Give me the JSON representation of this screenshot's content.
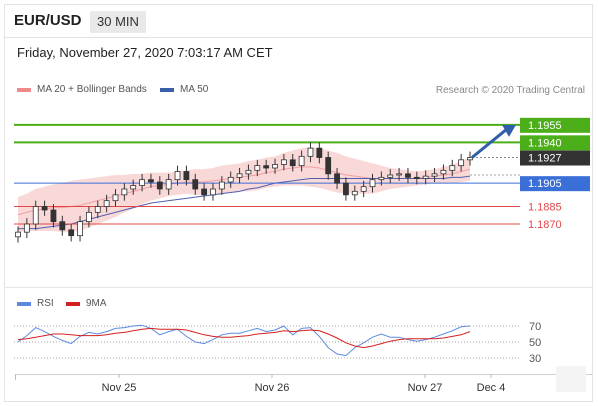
{
  "header": {
    "pair": "EUR/USD",
    "timeframe": "30 MIN"
  },
  "datetime": "Friday, November 27, 2020 7:03:17 AM CET",
  "legend": {
    "bb_label": "MA 20 + Bollinger Bands",
    "ma_label": "MA 50",
    "credit": "Research © 2020 Trading Central"
  },
  "rsi_legend": {
    "rsi": "RSI",
    "ma": "9MA"
  },
  "colors": {
    "green": "#4caf1a",
    "red": "#e04848",
    "blue": "#3a6fd8",
    "dark": "#333333",
    "bb": "#f4b8b8",
    "ma50": "#5060b0"
  },
  "chart_data": {
    "type": "line",
    "subtype": "candlestick",
    "ylim": [
      1.1822,
      1.1978
    ],
    "x_labels": [
      "Nov 25",
      "Nov 26",
      "Nov 27",
      "Dec 4"
    ],
    "levels": [
      {
        "value": 1.1955,
        "label": "1.1955",
        "style": "green"
      },
      {
        "value": 1.194,
        "label": "1.1940",
        "style": "green"
      },
      {
        "value": 1.1927,
        "label": "1.1927",
        "style": "dark"
      },
      {
        "value": 1.1905,
        "label": "1.1905",
        "style": "blue"
      },
      {
        "value": 1.1885,
        "label": "1.1885",
        "style": "red"
      },
      {
        "value": 1.187,
        "label": "1.1870",
        "style": "red"
      }
    ],
    "price": [
      1.1863,
      1.187,
      1.1885,
      1.1882,
      1.1872,
      1.1865,
      1.186,
      1.1872,
      1.188,
      1.1885,
      1.189,
      1.1895,
      1.19,
      1.1903,
      1.1908,
      1.1906,
      1.19,
      1.1908,
      1.1915,
      1.1908,
      1.19,
      1.1895,
      1.19,
      1.1906,
      1.191,
      1.1913,
      1.1916,
      1.192,
      1.1918,
      1.1921,
      1.1925,
      1.192,
      1.1928,
      1.1935,
      1.1927,
      1.1913,
      1.1905,
      1.1895,
      1.1898,
      1.1902,
      1.1908,
      1.191,
      1.1912,
      1.1913,
      1.191,
      1.1909,
      1.1911,
      1.1913,
      1.1916,
      1.192,
      1.1925,
      1.1927
    ],
    "ma20": [
      1.1878,
      1.188,
      1.1882,
      1.1883,
      1.1884,
      1.1884,
      1.1885,
      1.1886,
      1.1888,
      1.189,
      1.1892,
      1.1894,
      1.1896,
      1.1898,
      1.19,
      1.1902,
      1.1903,
      1.1904,
      1.1905,
      1.1906,
      1.1906,
      1.1906,
      1.1907,
      1.1908,
      1.1909,
      1.191,
      1.1911,
      1.1912,
      1.1914,
      1.1915,
      1.1917,
      1.1918,
      1.1919,
      1.1919,
      1.1918,
      1.1916,
      1.1914,
      1.1912,
      1.1911,
      1.191,
      1.1909,
      1.1909,
      1.1909,
      1.1909,
      1.1909,
      1.1909,
      1.191,
      1.1911,
      1.1912,
      1.1913,
      1.1915,
      1.1917
    ],
    "bb_width": [
      0.0015,
      0.0016,
      0.0018,
      0.0019,
      0.002,
      0.0021,
      0.0022,
      0.0022,
      0.0021,
      0.002,
      0.0019,
      0.0018,
      0.0016,
      0.0015,
      0.0013,
      0.0012,
      0.0011,
      0.001,
      0.001,
      0.001,
      0.0011,
      0.0011,
      0.0011,
      0.0012,
      0.0012,
      0.0012,
      0.0013,
      0.0013,
      0.0013,
      0.0013,
      0.0014,
      0.0015,
      0.0016,
      0.0017,
      0.0017,
      0.0017,
      0.0017,
      0.0016,
      0.0015,
      0.0014,
      0.0013,
      0.0011,
      0.0009,
      0.0008,
      0.0007,
      0.0006,
      0.0006,
      0.0006,
      0.0007,
      0.0008,
      0.0009,
      0.001
    ],
    "ma50": [
      1.1866,
      1.1866,
      1.1866,
      1.1867,
      1.1868,
      1.1869,
      1.187,
      1.1872,
      1.1874,
      1.1876,
      1.1878,
      1.188,
      1.1882,
      1.1884,
      1.1886,
      1.1888,
      1.1889,
      1.189,
      1.1891,
      1.1892,
      1.1893,
      1.1894,
      1.1895,
      1.1896,
      1.1897,
      1.1898,
      1.19,
      1.1901,
      1.1903,
      1.1905,
      1.1906,
      1.1907,
      1.1908,
      1.1909,
      1.1909,
      1.1909,
      1.1909,
      1.1909,
      1.1909,
      1.1909,
      1.1909,
      1.1909,
      1.1909,
      1.1909,
      1.1909,
      1.1909,
      1.1909,
      1.1909,
      1.1909,
      1.191,
      1.191,
      1.1911
    ],
    "rsi_levels": [
      70,
      50,
      30
    ],
    "rsi": [
      50,
      58,
      68,
      63,
      57,
      52,
      48,
      57,
      62,
      60,
      63,
      67,
      68,
      70,
      71,
      67,
      59,
      63,
      66,
      57,
      50,
      48,
      53,
      59,
      61,
      61,
      64,
      67,
      63,
      65,
      70,
      59,
      67,
      68,
      57,
      43,
      35,
      33,
      43,
      49,
      56,
      60,
      56,
      56,
      53,
      51,
      53,
      56,
      60,
      64,
      69,
      70
    ],
    "rsi_ma": [
      53,
      54,
      56,
      58,
      60,
      60,
      59,
      58,
      58,
      58,
      59,
      61,
      62,
      64,
      66,
      67,
      66,
      66,
      66,
      65,
      62,
      59,
      57,
      56,
      56,
      57,
      58,
      60,
      61,
      62,
      64,
      63,
      64,
      65,
      64,
      60,
      55,
      49,
      45,
      43,
      45,
      48,
      51,
      53,
      54,
      54,
      54,
      54,
      55,
      57,
      59,
      63
    ]
  }
}
